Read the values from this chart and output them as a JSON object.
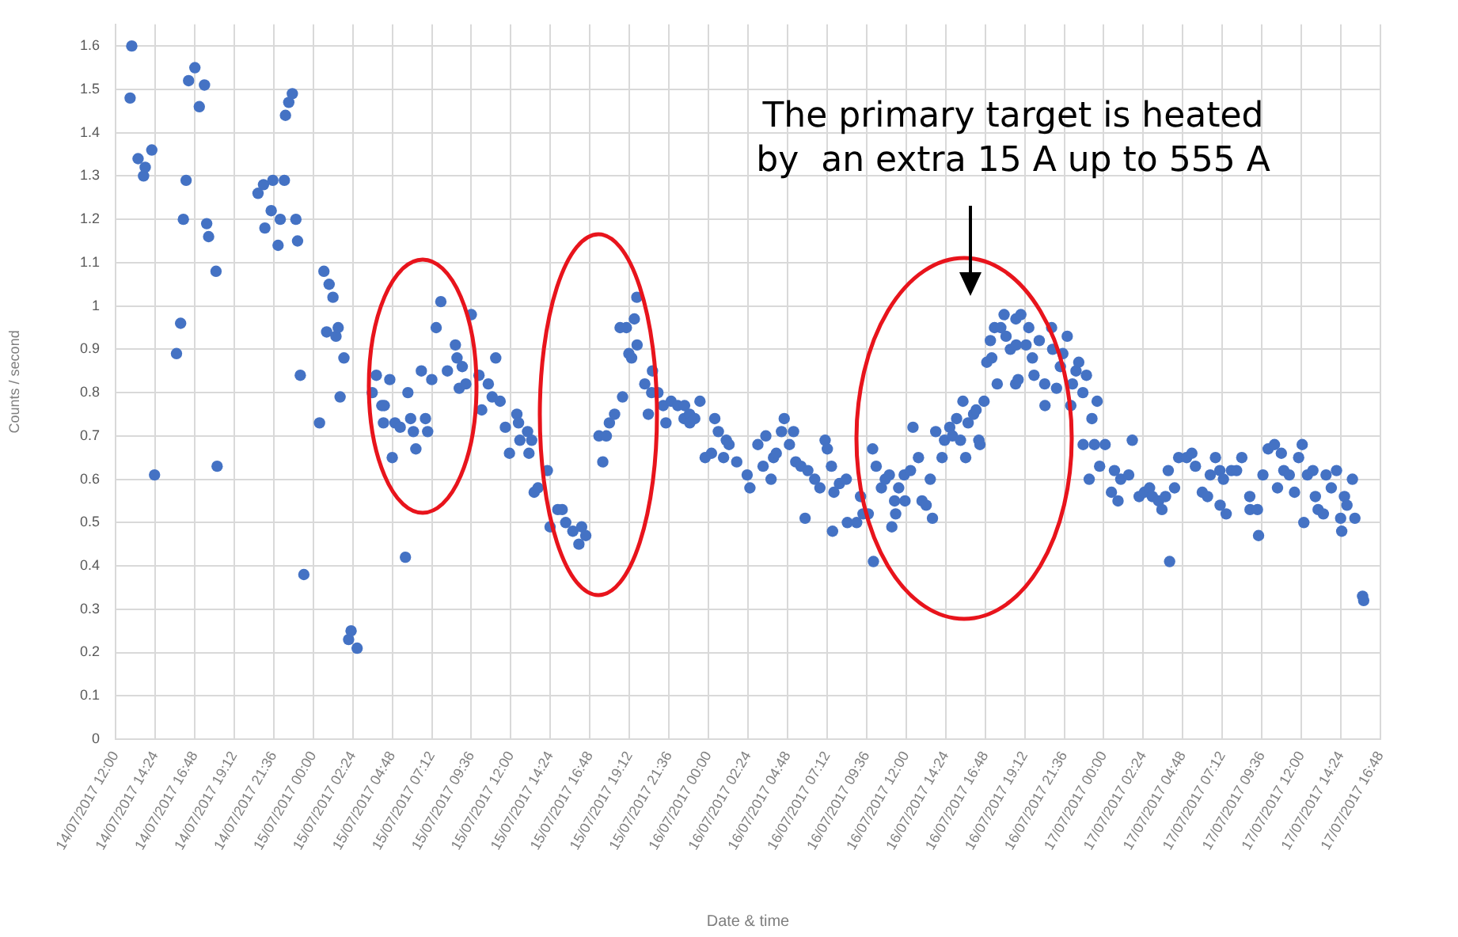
{
  "chart_data": {
    "type": "scatter",
    "xlabel": "Date & time",
    "ylabel": "Counts / second",
    "annotations": [
      "The primary target is heated\nby  an extra 15 A up to 555 A"
    ],
    "color": "#4472c4",
    "marker": "circle",
    "grid": true,
    "legend": false,
    "xlim": [
      "2017-07-14T12:00",
      "2017-07-17T16:48"
    ],
    "ylim": [
      0,
      1.65
    ],
    "yticks": [
      0,
      0.1,
      0.2,
      0.3,
      0.4,
      0.5,
      0.6,
      0.7,
      0.8,
      0.9,
      1,
      1.1,
      1.2,
      1.3,
      1.4,
      1.5,
      1.6
    ],
    "xticks": [
      {
        "value": "2017-07-14T12:00",
        "label": "14/07/2017 12:00"
      },
      {
        "value": "2017-07-14T14:24",
        "label": "14/07/2017 14:24"
      },
      {
        "value": "2017-07-14T16:48",
        "label": "14/07/2017 16:48"
      },
      {
        "value": "2017-07-14T19:12",
        "label": "14/07/2017 19:12"
      },
      {
        "value": "2017-07-14T21:36",
        "label": "14/07/2017 21:36"
      },
      {
        "value": "2017-07-15T00:00",
        "label": "15/07/2017 00:00"
      },
      {
        "value": "2017-07-15T02:24",
        "label": "15/07/2017 02:24"
      },
      {
        "value": "2017-07-15T04:48",
        "label": "15/07/2017 04:48"
      },
      {
        "value": "2017-07-15T07:12",
        "label": "15/07/2017 07:12"
      },
      {
        "value": "2017-07-15T09:36",
        "label": "15/07/2017 09:36"
      },
      {
        "value": "2017-07-15T12:00",
        "label": "15/07/2017 12:00"
      },
      {
        "value": "2017-07-15T14:24",
        "label": "15/07/2017 14:24"
      },
      {
        "value": "2017-07-15T16:48",
        "label": "15/07/2017 16:48"
      },
      {
        "value": "2017-07-15T19:12",
        "label": "15/07/2017 19:12"
      },
      {
        "value": "2017-07-15T21:36",
        "label": "15/07/2017 21:36"
      },
      {
        "value": "2017-07-16T00:00",
        "label": "16/07/2017 00:00"
      },
      {
        "value": "2017-07-16T02:24",
        "label": "16/07/2017 02:24"
      },
      {
        "value": "2017-07-16T04:48",
        "label": "16/07/2017 04:48"
      },
      {
        "value": "2017-07-16T07:12",
        "label": "16/07/2017 07:12"
      },
      {
        "value": "2017-07-16T09:36",
        "label": "16/07/2017 09:36"
      },
      {
        "value": "2017-07-16T12:00",
        "label": "16/07/2017 12:00"
      },
      {
        "value": "2017-07-16T14:24",
        "label": "16/07/2017 14:24"
      },
      {
        "value": "2017-07-16T16:48",
        "label": "16/07/2017 16:48"
      },
      {
        "value": "2017-07-16T19:12",
        "label": "16/07/2017 19:12"
      },
      {
        "value": "2017-07-16T21:36",
        "label": "16/07/2017 21:36"
      },
      {
        "value": "2017-07-17T00:00",
        "label": "17/07/2017 00:00"
      },
      {
        "value": "2017-07-17T02:24",
        "label": "17/07/2017 02:24"
      },
      {
        "value": "2017-07-17T04:48",
        "label": "17/07/2017 04:48"
      },
      {
        "value": "2017-07-17T07:12",
        "label": "17/07/2017 07:12"
      },
      {
        "value": "2017-07-17T09:36",
        "label": "17/07/2017 09:36"
      },
      {
        "value": "2017-07-17T12:00",
        "label": "17/07/2017 12:00"
      },
      {
        "value": "2017-07-17T14:24",
        "label": "17/07/2017 14:24"
      },
      {
        "value": "2017-07-17T16:48",
        "label": "17/07/2017 16:48"
      }
    ],
    "x": [
      "2017-07-14T12:59",
      "2017-07-14T12:53",
      "2017-07-14T13:22",
      "2017-07-14T13:42",
      "2017-07-14T13:48",
      "2017-07-14T14:12",
      "2017-07-14T14:22",
      "2017-07-14T15:42",
      "2017-07-14T15:57",
      "2017-07-14T16:07",
      "2017-07-14T16:17",
      "2017-07-14T16:26",
      "2017-07-14T16:49",
      "2017-07-14T17:05",
      "2017-07-14T17:24",
      "2017-07-14T17:32",
      "2017-07-14T17:39",
      "2017-07-14T18:06",
      "2017-07-14T18:10",
      "2017-07-14T20:39",
      "2017-07-14T20:59",
      "2017-07-14T21:04",
      "2017-07-14T21:27",
      "2017-07-14T21:33",
      "2017-07-14T21:52",
      "2017-07-14T22:00",
      "2017-07-14T22:15",
      "2017-07-14T22:19",
      "2017-07-14T22:31",
      "2017-07-14T22:44",
      "2017-07-14T22:57",
      "2017-07-14T23:03",
      "2017-07-14T23:13",
      "2017-07-14T23:26",
      "2017-07-15T00:23",
      "2017-07-15T00:39",
      "2017-07-15T00:49",
      "2017-07-15T00:58",
      "2017-07-15T01:12",
      "2017-07-15T01:23",
      "2017-07-15T01:31",
      "2017-07-15T01:38",
      "2017-07-15T01:52",
      "2017-07-15T02:09",
      "2017-07-15T02:18",
      "2017-07-15T02:40",
      "2017-07-15T03:35",
      "2017-07-15T03:50",
      "2017-07-15T04:10",
      "2017-07-15T04:16",
      "2017-07-15T04:19",
      "2017-07-15T04:39",
      "2017-07-15T04:48",
      "2017-07-15T04:58",
      "2017-07-15T05:17",
      "2017-07-15T05:36",
      "2017-07-15T05:45",
      "2017-07-15T05:55",
      "2017-07-15T06:05",
      "2017-07-15T06:14",
      "2017-07-15T06:34",
      "2017-07-15T06:49",
      "2017-07-15T06:57",
      "2017-07-15T07:12",
      "2017-07-15T07:28",
      "2017-07-15T07:45",
      "2017-07-15T08:09",
      "2017-07-15T08:38",
      "2017-07-15T08:44",
      "2017-07-15T08:52",
      "2017-07-15T09:03",
      "2017-07-15T09:16",
      "2017-07-15T09:36",
      "2017-07-15T10:04",
      "2017-07-15T10:14",
      "2017-07-15T10:38",
      "2017-07-15T10:52",
      "2017-07-15T11:05",
      "2017-07-15T11:21",
      "2017-07-15T11:40",
      "2017-07-15T11:55",
      "2017-07-15T12:22",
      "2017-07-15T12:28",
      "2017-07-15T12:33",
      "2017-07-15T13:01",
      "2017-07-15T13:06",
      "2017-07-15T13:16",
      "2017-07-15T13:25",
      "2017-07-15T13:39",
      "2017-07-15T14:13",
      "2017-07-15T14:23",
      "2017-07-15T14:51",
      "2017-07-15T15:07",
      "2017-07-15T15:20",
      "2017-07-15T15:46",
      "2017-07-15T16:08",
      "2017-07-15T16:18",
      "2017-07-15T16:33",
      "2017-07-15T17:21",
      "2017-07-15T17:35",
      "2017-07-15T17:48",
      "2017-07-15T17:59",
      "2017-07-15T18:18",
      "2017-07-15T18:38",
      "2017-07-15T18:47",
      "2017-07-15T19:01",
      "2017-07-15T19:10",
      "2017-07-15T19:20",
      "2017-07-15T19:30",
      "2017-07-15T19:39",
      "2017-07-15T19:40",
      "2017-07-15T20:08",
      "2017-07-15T20:21",
      "2017-07-15T20:33",
      "2017-07-15T20:36",
      "2017-07-15T20:56",
      "2017-07-15T21:15",
      "2017-07-15T21:25",
      "2017-07-15T21:44",
      "2017-07-15T22:08",
      "2017-07-15T22:31",
      "2017-07-15T22:33",
      "2017-07-15T22:51",
      "2017-07-15T22:52",
      "2017-07-15T23:10",
      "2017-07-15T23:29",
      "2017-07-15T23:48",
      "2017-07-16T00:11",
      "2017-07-16T00:23",
      "2017-07-16T00:36",
      "2017-07-16T00:55",
      "2017-07-16T01:05",
      "2017-07-16T01:15",
      "2017-07-16T01:43",
      "2017-07-16T02:21",
      "2017-07-16T02:31",
      "2017-07-16T03:00",
      "2017-07-16T03:19",
      "2017-07-16T03:29",
      "2017-07-16T03:48",
      "2017-07-16T03:57",
      "2017-07-16T04:07",
      "2017-07-16T04:26",
      "2017-07-16T04:36",
      "2017-07-16T04:55",
      "2017-07-16T05:10",
      "2017-07-16T05:18",
      "2017-07-16T05:37",
      "2017-07-16T05:52",
      "2017-07-16T06:02",
      "2017-07-16T06:27",
      "2017-07-16T06:46",
      "2017-07-16T07:05",
      "2017-07-16T07:13",
      "2017-07-16T07:28",
      "2017-07-16T07:32",
      "2017-07-16T07:37",
      "2017-07-16T07:57",
      "2017-07-16T08:22",
      "2017-07-16T08:26",
      "2017-07-16T09:00",
      "2017-07-16T09:14",
      "2017-07-16T09:23",
      "2017-07-16T09:42",
      "2017-07-16T09:58",
      "2017-07-16T10:01",
      "2017-07-16T10:11",
      "2017-07-16T10:30",
      "2017-07-16T10:44",
      "2017-07-16T10:59",
      "2017-07-16T11:08",
      "2017-07-16T11:18",
      "2017-07-16T11:22",
      "2017-07-16T11:33",
      "2017-07-16T11:53",
      "2017-07-16T11:56",
      "2017-07-16T12:16",
      "2017-07-16T12:25",
      "2017-07-16T12:45",
      "2017-07-16T12:58",
      "2017-07-16T13:13",
      "2017-07-16T13:28",
      "2017-07-16T13:36",
      "2017-07-16T13:48",
      "2017-07-16T14:11",
      "2017-07-16T14:20",
      "2017-07-16T14:39",
      "2017-07-16T14:49",
      "2017-07-16T15:04",
      "2017-07-16T15:18",
      "2017-07-16T15:27",
      "2017-07-16T15:37",
      "2017-07-16T15:46",
      "2017-07-16T16:06",
      "2017-07-16T16:15",
      "2017-07-16T16:25",
      "2017-07-16T16:29",
      "2017-07-16T16:44",
      "2017-07-16T16:54",
      "2017-07-16T17:07",
      "2017-07-16T17:12",
      "2017-07-16T17:22",
      "2017-07-16T17:32",
      "2017-07-16T17:45",
      "2017-07-16T17:57",
      "2017-07-16T18:04",
      "2017-07-16T18:20",
      "2017-07-16T18:39",
      "2017-07-16T18:40",
      "2017-07-16T18:41",
      "2017-07-16T18:48",
      "2017-07-16T18:58",
      "2017-07-16T19:17",
      "2017-07-16T19:27",
      "2017-07-16T19:40",
      "2017-07-16T19:46",
      "2017-07-16T20:05",
      "2017-07-16T20:25",
      "2017-07-16T20:26",
      "2017-07-16T20:50",
      "2017-07-16T20:54",
      "2017-07-16T21:08",
      "2017-07-16T21:22",
      "2017-07-16T21:31",
      "2017-07-16T21:47",
      "2017-07-16T22:00",
      "2017-07-16T22:06",
      "2017-07-16T22:19",
      "2017-07-16T22:29",
      "2017-07-16T22:44",
      "2017-07-16T22:45",
      "2017-07-16T22:57",
      "2017-07-16T23:07",
      "2017-07-16T23:17",
      "2017-07-16T23:26",
      "2017-07-16T23:36",
      "2017-07-16T23:45",
      "2017-07-17T00:05",
      "2017-07-17T00:28",
      "2017-07-17T00:39",
      "2017-07-17T00:52",
      "2017-07-17T01:02",
      "2017-07-17T01:31",
      "2017-07-17T01:44",
      "2017-07-17T02:09",
      "2017-07-17T02:28",
      "2017-07-17T02:47",
      "2017-07-17T02:57",
      "2017-07-17T03:20",
      "2017-07-17T03:32",
      "2017-07-17T03:45",
      "2017-07-17T03:55",
      "2017-07-17T04:00",
      "2017-07-17T04:18",
      "2017-07-17T04:33",
      "2017-07-17T05:02",
      "2017-07-17T05:21",
      "2017-07-17T05:34",
      "2017-07-17T05:59",
      "2017-07-17T06:18",
      "2017-07-17T06:28",
      "2017-07-17T06:47",
      "2017-07-17T07:03",
      "2017-07-17T07:04",
      "2017-07-17T07:16",
      "2017-07-17T07:26",
      "2017-07-17T07:45",
      "2017-07-17T08:04",
      "2017-07-17T08:23",
      "2017-07-17T08:52",
      "2017-07-17T08:53",
      "2017-07-17T09:20",
      "2017-07-17T09:24",
      "2017-07-17T09:40",
      "2017-07-17T09:59",
      "2017-07-17T10:22",
      "2017-07-17T10:33",
      "2017-07-17T10:47",
      "2017-07-17T10:56",
      "2017-07-17T11:16",
      "2017-07-17T11:35",
      "2017-07-17T11:50",
      "2017-07-17T12:03",
      "2017-07-17T12:09",
      "2017-07-17T12:22",
      "2017-07-17T12:42",
      "2017-07-17T12:51",
      "2017-07-17T13:01",
      "2017-07-17T13:20",
      "2017-07-17T13:30",
      "2017-07-17T13:49",
      "2017-07-17T14:08",
      "2017-07-17T14:23",
      "2017-07-17T14:27",
      "2017-07-17T14:37",
      "2017-07-17T14:46",
      "2017-07-17T15:06",
      "2017-07-17T15:15",
      "2017-07-17T15:43",
      "2017-07-17T15:47"
    ],
    "values": [
      1.6,
      1.48,
      1.34,
      1.3,
      1.32,
      1.36,
      0.61,
      0.89,
      0.96,
      1.2,
      1.29,
      1.52,
      1.55,
      1.46,
      1.51,
      1.19,
      1.16,
      1.08,
      0.63,
      1.26,
      1.28,
      1.18,
      1.22,
      1.29,
      1.14,
      1.2,
      1.29,
      1.44,
      1.47,
      1.49,
      1.2,
      1.15,
      0.84,
      0.38,
      0.73,
      1.08,
      0.94,
      1.05,
      1.02,
      0.93,
      0.95,
      0.79,
      0.88,
      0.23,
      0.25,
      0.21,
      0.8,
      0.84,
      0.77,
      0.73,
      0.77,
      0.83,
      0.65,
      0.73,
      0.72,
      0.42,
      0.8,
      0.74,
      0.71,
      0.67,
      0.85,
      0.74,
      0.71,
      0.83,
      0.95,
      1.01,
      0.85,
      0.91,
      0.88,
      0.81,
      0.86,
      0.82,
      0.98,
      0.84,
      0.76,
      0.82,
      0.79,
      0.88,
      0.78,
      0.72,
      0.66,
      0.75,
      0.73,
      0.69,
      0.71,
      0.66,
      0.69,
      0.57,
      0.58,
      0.62,
      0.49,
      0.53,
      0.53,
      0.5,
      0.48,
      0.45,
      0.49,
      0.47,
      0.7,
      0.64,
      0.7,
      0.73,
      0.75,
      0.95,
      0.79,
      0.95,
      0.89,
      0.88,
      0.97,
      1.02,
      0.91,
      0.82,
      0.75,
      0.8,
      0.85,
      0.8,
      0.77,
      0.73,
      0.78,
      0.77,
      0.74,
      0.77,
      0.75,
      0.73,
      0.74,
      0.78,
      0.65,
      0.66,
      0.74,
      0.71,
      0.65,
      0.69,
      0.68,
      0.64,
      0.61,
      0.58,
      0.68,
      0.63,
      0.7,
      0.6,
      0.65,
      0.66,
      0.71,
      0.74,
      0.68,
      0.71,
      0.64,
      0.63,
      0.51,
      0.62,
      0.6,
      0.58,
      0.69,
      0.67,
      0.63,
      0.48,
      0.57,
      0.59,
      0.6,
      0.5,
      0.5,
      0.56,
      0.52,
      0.52,
      0.67,
      0.41,
      0.63,
      0.58,
      0.6,
      0.61,
      0.49,
      0.55,
      0.52,
      0.58,
      0.61,
      0.55,
      0.62,
      0.72,
      0.65,
      0.55,
      0.54,
      0.6,
      0.51,
      0.71,
      0.65,
      0.69,
      0.72,
      0.7,
      0.74,
      0.69,
      0.78,
      0.65,
      0.73,
      0.75,
      0.76,
      0.69,
      0.68,
      0.78,
      0.87,
      0.92,
      0.88,
      0.95,
      0.82,
      0.95,
      0.98,
      0.93,
      0.9,
      0.82,
      0.97,
      0.91,
      0.83,
      0.98,
      0.91,
      0.95,
      0.88,
      0.84,
      0.92,
      0.82,
      0.77,
      0.95,
      0.9,
      0.81,
      0.86,
      0.89,
      0.93,
      0.77,
      0.82,
      0.85,
      0.87,
      0.8,
      0.68,
      0.84,
      0.6,
      0.74,
      0.68,
      0.78,
      0.63,
      0.68,
      0.57,
      0.62,
      0.55,
      0.6,
      0.61,
      0.69,
      0.56,
      0.57,
      0.58,
      0.56,
      0.55,
      0.53,
      0.56,
      0.62,
      0.41,
      0.58,
      0.65,
      0.65,
      0.66,
      0.63,
      0.57,
      0.56,
      0.61,
      0.65,
      0.62,
      0.54,
      0.6,
      0.52,
      0.62,
      0.62,
      0.65,
      0.56,
      0.53,
      0.53,
      0.47,
      0.61,
      0.67,
      0.68,
      0.58,
      0.66,
      0.62,
      0.61,
      0.57,
      0.65,
      0.68,
      0.5,
      0.61,
      0.62,
      0.56,
      0.53,
      0.52,
      0.61,
      0.58,
      0.62,
      0.51,
      0.48,
      0.56,
      0.54,
      0.6,
      0.51,
      0.33,
      0.32
    ]
  }
}
